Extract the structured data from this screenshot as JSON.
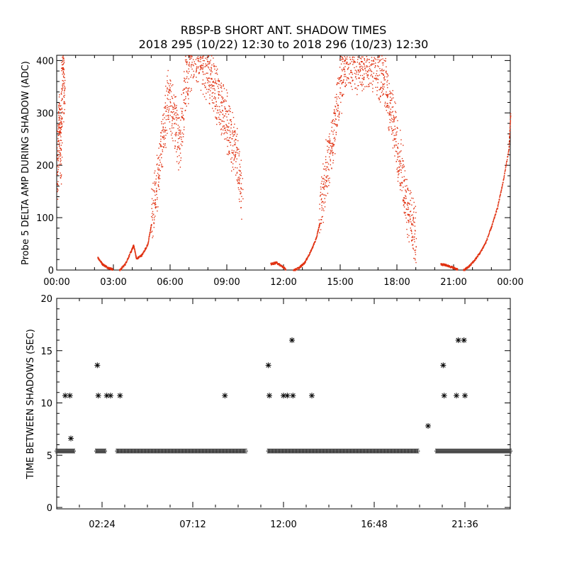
{
  "title_line1": "RBSP-B SHORT ANT. SHADOW TIMES",
  "title_line2": "2018 295 (10/22) 12:30 to 2018 296 (10/23) 12:30",
  "colors": {
    "top_series": "#e03010",
    "bottom_series": "#000000",
    "axes": "#000000"
  },
  "chart_data": [
    {
      "type": "scatter",
      "ylabel": "Probe 5 DELTA AMP DURING SHADOW (ADC)",
      "xlabel": "",
      "xlim": [
        0,
        24
      ],
      "ylim": [
        0,
        410
      ],
      "x_tick_labels": [
        "00:00",
        "03:00",
        "06:00",
        "09:00",
        "12:00",
        "15:00",
        "18:00",
        "21:00",
        "00:00"
      ],
      "y_tick_labels": [
        "0",
        "100",
        "200",
        "300",
        "400"
      ],
      "grid": false,
      "series": [
        {
          "color": "#e03010",
          "segments": [
            {
              "x": [
                0.0,
                0.1,
                0.2,
                0.3,
                0.4
              ],
              "y": [
                160,
                300,
                220,
                420,
                300
              ],
              "kind": "spread"
            },
            {
              "x": [
                2.15,
                2.4,
                2.7,
                2.95
              ],
              "y": [
                25,
                12,
                5,
                2
              ]
            },
            {
              "x": [
                3.3,
                3.6,
                3.9,
                4.05,
                4.2,
                4.5,
                4.8,
                5.0
              ],
              "y": [
                0,
                12,
                35,
                48,
                22,
                30,
                50,
                90
              ]
            },
            {
              "x": [
                5.0,
                5.3,
                5.6,
                5.9,
                6.2,
                6.5,
                6.8,
                7.1,
                7.4,
                7.7,
                8.0,
                8.3,
                8.6,
                8.9,
                9.2,
                9.5,
                9.8
              ],
              "y": [
                100,
                170,
                260,
                330,
                290,
                240,
                360,
                400,
                410,
                390,
                380,
                350,
                320,
                290,
                250,
                220,
                150
              ],
              "kind": "spread"
            },
            {
              "x": [
                11.3,
                11.6,
                11.9,
                12.1
              ],
              "y": [
                12,
                15,
                8,
                2
              ]
            },
            {
              "x": [
                12.5,
                12.8,
                13.1,
                13.4,
                13.7,
                13.9
              ],
              "y": [
                0,
                5,
                15,
                35,
                60,
                90
              ]
            },
            {
              "x": [
                13.9,
                14.2,
                14.5,
                14.8,
                15.1,
                15.4,
                15.7,
                16.0,
                16.3,
                16.6,
                16.9,
                17.2,
                17.5,
                17.8,
                18.1,
                18.4,
                18.7,
                19.0
              ],
              "y": [
                110,
                180,
                240,
                300,
                380,
                410,
                400,
                395,
                405,
                400,
                390,
                370,
                330,
                280,
                220,
                150,
                100,
                60
              ],
              "kind": "spread"
            },
            {
              "x": [
                20.3,
                20.6,
                20.9,
                21.2
              ],
              "y": [
                12,
                10,
                6,
                2
              ]
            },
            {
              "x": [
                21.5,
                21.8,
                22.1,
                22.4,
                22.7,
                23.0,
                23.3,
                23.6,
                23.9,
                24.0
              ],
              "y": [
                0,
                8,
                20,
                35,
                55,
                85,
                120,
                170,
                230,
                300
              ]
            }
          ]
        }
      ]
    },
    {
      "type": "scatter",
      "ylabel": "TIME BETWEEN SHADOWS (SEC)",
      "xlabel": "",
      "xlim": [
        0,
        24
      ],
      "ylim": [
        0,
        20
      ],
      "x_tick_labels": [
        "02:24",
        "07:12",
        "12:00",
        "16:48",
        "21:36"
      ],
      "y_tick_labels": [
        "0",
        "5",
        "10",
        "15",
        "20"
      ],
      "grid": false,
      "baseline_runs": [
        [
          0.0,
          0.9
        ],
        [
          2.1,
          2.55
        ],
        [
          3.2,
          10.0
        ],
        [
          11.2,
          19.1
        ],
        [
          20.1,
          24.0
        ]
      ],
      "baseline_value": 5.4,
      "points": [
        {
          "x": 0.45,
          "y": 10.7
        },
        {
          "x": 0.7,
          "y": 10.7
        },
        {
          "x": 0.75,
          "y": 6.6
        },
        {
          "x": 2.15,
          "y": 13.6
        },
        {
          "x": 2.2,
          "y": 10.7
        },
        {
          "x": 2.65,
          "y": 10.7
        },
        {
          "x": 2.85,
          "y": 10.7
        },
        {
          "x": 3.35,
          "y": 10.7
        },
        {
          "x": 8.9,
          "y": 10.7
        },
        {
          "x": 11.2,
          "y": 13.6
        },
        {
          "x": 11.25,
          "y": 10.7
        },
        {
          "x": 12.0,
          "y": 10.7
        },
        {
          "x": 12.2,
          "y": 10.7
        },
        {
          "x": 12.45,
          "y": 16.0
        },
        {
          "x": 12.5,
          "y": 10.7
        },
        {
          "x": 13.5,
          "y": 10.7
        },
        {
          "x": 19.65,
          "y": 7.8
        },
        {
          "x": 20.45,
          "y": 13.6
        },
        {
          "x": 20.5,
          "y": 10.7
        },
        {
          "x": 21.15,
          "y": 10.7
        },
        {
          "x": 21.25,
          "y": 16.0
        },
        {
          "x": 21.55,
          "y": 16.0
        },
        {
          "x": 21.6,
          "y": 10.7
        }
      ]
    }
  ]
}
